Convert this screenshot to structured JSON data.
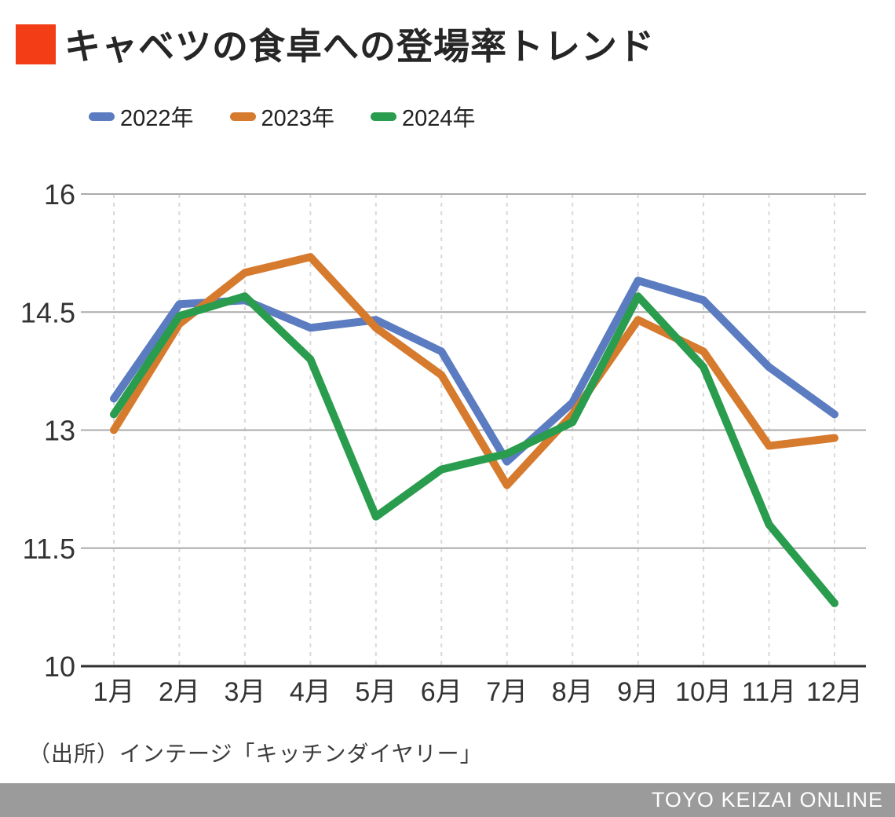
{
  "header": {
    "title": "キャベツの食卓への登場率トレンド",
    "accent_color": "#F23D16"
  },
  "chart_data": {
    "type": "line",
    "title": "キャベツの食卓への登場率トレンド",
    "categories": [
      "1月",
      "2月",
      "3月",
      "4月",
      "5月",
      "6月",
      "7月",
      "8月",
      "9月",
      "10月",
      "11月",
      "12月"
    ],
    "series": [
      {
        "name": "2022年",
        "color": "#5B7CC1",
        "values": [
          13.4,
          14.6,
          14.65,
          14.3,
          14.4,
          14.0,
          12.6,
          13.35,
          14.9,
          14.65,
          13.8,
          13.2
        ]
      },
      {
        "name": "2023年",
        "color": "#D67A2D",
        "values": [
          13.0,
          14.35,
          15.0,
          15.2,
          14.3,
          13.7,
          12.3,
          13.2,
          14.4,
          14.0,
          12.8,
          12.9
        ]
      },
      {
        "name": "2024年",
        "color": "#2A9C4D",
        "values": [
          13.2,
          14.45,
          14.7,
          13.9,
          11.9,
          12.5,
          12.7,
          13.1,
          14.7,
          13.8,
          11.8,
          10.8
        ]
      }
    ],
    "xlabel": "",
    "ylabel": "",
    "ylim": [
      10,
      16
    ],
    "yticks": [
      10,
      11.5,
      13,
      14.5,
      16
    ],
    "grid": true,
    "legend_position": "top",
    "colors": {
      "h_gridline": "#ABABAB",
      "baseline": "#2F2F2F",
      "v_gridline_dashed": "#D9D9D9",
      "tick_text": "#333333"
    }
  },
  "source": {
    "text": "（出所）インテージ「キッチンダイヤリー」"
  },
  "footer": {
    "brand": "TOYO KEIZAI ONLINE",
    "bg_color": "#9B9B9B"
  }
}
